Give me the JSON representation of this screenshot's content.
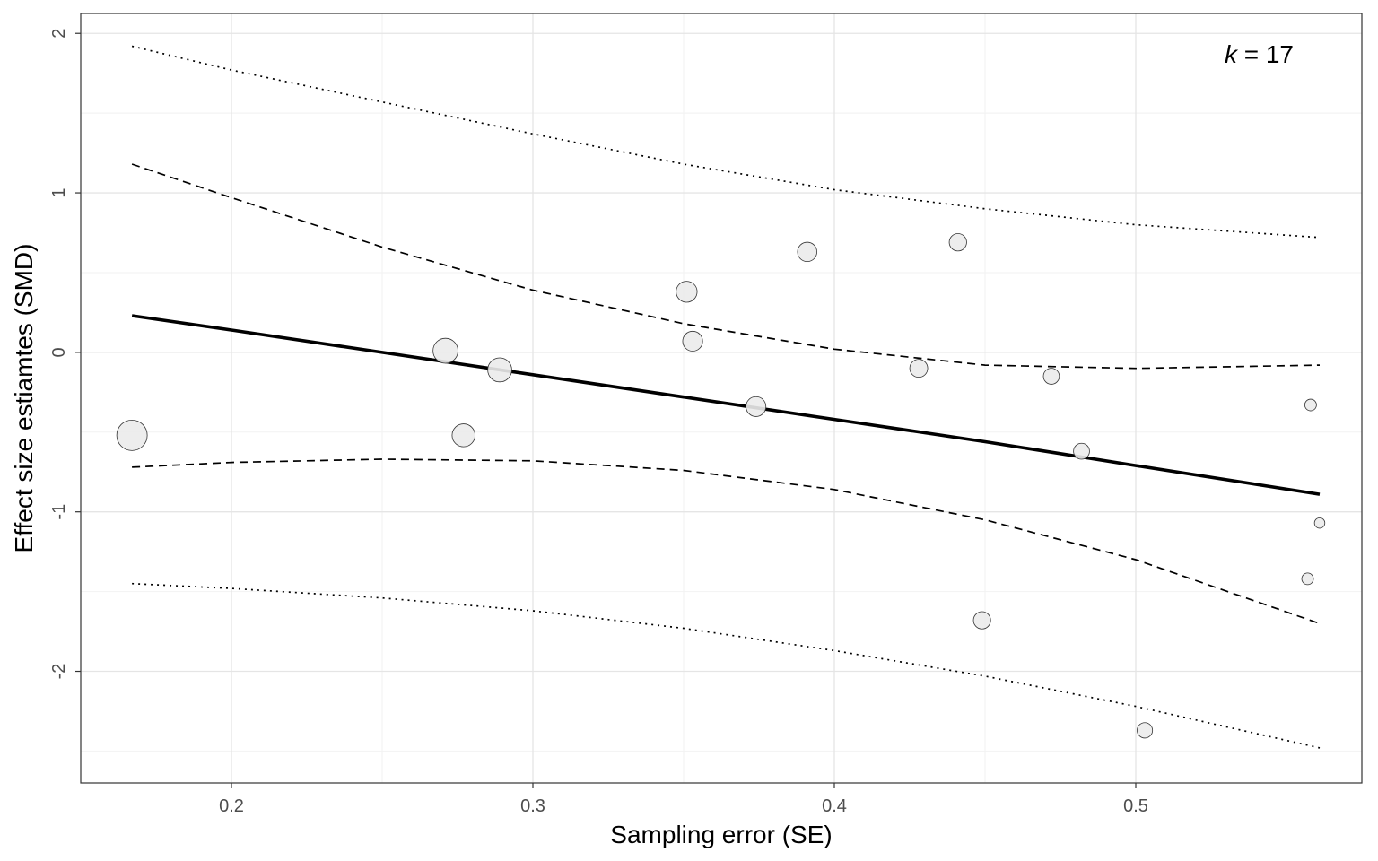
{
  "chart_data": {
    "type": "scatter",
    "xlabel": "Sampling error (SE)",
    "ylabel": "Effect size estiamtes (SMD)",
    "xlim": [
      0.15,
      0.575
    ],
    "ylim": [
      -2.7,
      2.125
    ],
    "x_ticks": [
      0.2,
      0.3,
      0.4,
      0.5
    ],
    "x_tick_labels": [
      "0.2",
      "0.3",
      "0.4",
      "0.5"
    ],
    "y_ticks": [
      -2,
      -1,
      0,
      1,
      2
    ],
    "y_tick_labels": [
      "-2",
      "-1",
      "0",
      "1",
      "2"
    ],
    "grid": true,
    "annotation": {
      "italic": "k",
      "rest": " = 17",
      "position": "top-right"
    },
    "points": [
      {
        "x": 0.167,
        "y": -0.52,
        "weight": 1.0
      },
      {
        "x": 0.271,
        "y": 0.01,
        "weight": 0.78
      },
      {
        "x": 0.277,
        "y": -0.52,
        "weight": 0.7
      },
      {
        "x": 0.289,
        "y": -0.11,
        "weight": 0.74
      },
      {
        "x": 0.351,
        "y": 0.38,
        "weight": 0.62
      },
      {
        "x": 0.353,
        "y": 0.07,
        "weight": 0.58
      },
      {
        "x": 0.374,
        "y": -0.34,
        "weight": 0.58
      },
      {
        "x": 0.391,
        "y": 0.63,
        "weight": 0.56
      },
      {
        "x": 0.428,
        "y": -0.1,
        "weight": 0.5
      },
      {
        "x": 0.441,
        "y": 0.69,
        "weight": 0.48
      },
      {
        "x": 0.449,
        "y": -1.68,
        "weight": 0.47
      },
      {
        "x": 0.472,
        "y": -0.15,
        "weight": 0.42
      },
      {
        "x": 0.482,
        "y": -0.62,
        "weight": 0.42
      },
      {
        "x": 0.503,
        "y": -2.37,
        "weight": 0.4
      },
      {
        "x": 0.558,
        "y": -0.33,
        "weight": 0.25
      },
      {
        "x": 0.557,
        "y": -1.42,
        "weight": 0.25
      },
      {
        "x": 0.561,
        "y": -1.07,
        "weight": 0.2
      }
    ],
    "fit_line": {
      "style": "solid",
      "x": [
        0.167,
        0.2,
        0.25,
        0.3,
        0.35,
        0.4,
        0.45,
        0.5,
        0.561
      ],
      "y": [
        0.23,
        0.14,
        0.0,
        -0.14,
        -0.28,
        -0.42,
        -0.56,
        -0.71,
        -0.89
      ]
    },
    "inner_bounds": {
      "style": "dashed",
      "upper": {
        "x": [
          0.167,
          0.2,
          0.25,
          0.3,
          0.35,
          0.4,
          0.45,
          0.5,
          0.561
        ],
        "y": [
          1.18,
          0.97,
          0.66,
          0.39,
          0.18,
          0.02,
          -0.08,
          -0.1,
          -0.08
        ]
      },
      "lower": {
        "x": [
          0.167,
          0.2,
          0.25,
          0.3,
          0.35,
          0.4,
          0.45,
          0.5,
          0.561
        ],
        "y": [
          -0.72,
          -0.69,
          -0.67,
          -0.68,
          -0.74,
          -0.86,
          -1.05,
          -1.3,
          -1.7
        ]
      }
    },
    "outer_bounds": {
      "style": "dotted",
      "upper": {
        "x": [
          0.167,
          0.2,
          0.25,
          0.3,
          0.35,
          0.4,
          0.45,
          0.5,
          0.561
        ],
        "y": [
          1.92,
          1.77,
          1.57,
          1.37,
          1.18,
          1.02,
          0.9,
          0.8,
          0.72
        ]
      },
      "lower": {
        "x": [
          0.167,
          0.2,
          0.25,
          0.3,
          0.35,
          0.4,
          0.45,
          0.5,
          0.561
        ],
        "y": [
          -1.45,
          -1.48,
          -1.54,
          -1.62,
          -1.73,
          -1.87,
          -2.03,
          -2.22,
          -2.48
        ]
      }
    }
  }
}
